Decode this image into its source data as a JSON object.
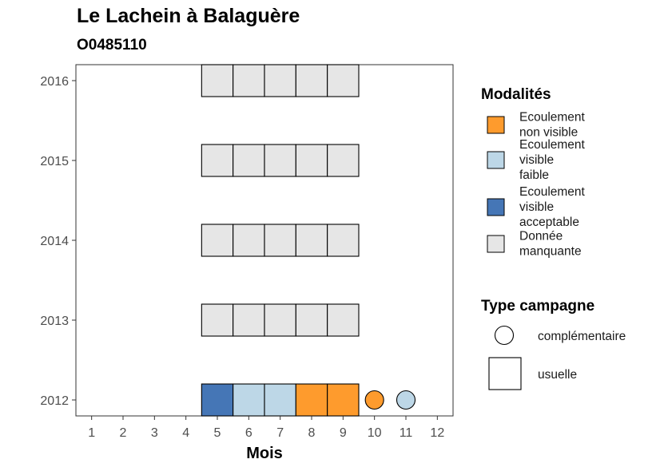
{
  "title": "Le Lachein à Balaguère",
  "subtitle": "O0485110",
  "chart_data": {
    "type": "heatmap",
    "xlabel": "Mois",
    "ylabel": "",
    "x_ticks": [
      1,
      2,
      3,
      4,
      5,
      6,
      7,
      8,
      9,
      10,
      11,
      12
    ],
    "y_ticks": [
      2012,
      2013,
      2014,
      2015,
      2016
    ],
    "xlim": [
      0.5,
      12.5
    ],
    "ylim": [
      2011.8,
      2016.2
    ],
    "grid": false,
    "legend_position": "right",
    "colors": {
      "Ecoulement non visible": "#FE9B2D",
      "Ecoulement visible faible": "#BDD7E7",
      "Ecoulement visible acceptable": "#4576B6",
      "Donnée manquante": "#E6E6E6"
    },
    "observations": [
      {
        "year": 2016,
        "month": 5,
        "modality": "Donnée manquante",
        "campaign": "usuelle"
      },
      {
        "year": 2016,
        "month": 6,
        "modality": "Donnée manquante",
        "campaign": "usuelle"
      },
      {
        "year": 2016,
        "month": 7,
        "modality": "Donnée manquante",
        "campaign": "usuelle"
      },
      {
        "year": 2016,
        "month": 8,
        "modality": "Donnée manquante",
        "campaign": "usuelle"
      },
      {
        "year": 2016,
        "month": 9,
        "modality": "Donnée manquante",
        "campaign": "usuelle"
      },
      {
        "year": 2015,
        "month": 5,
        "modality": "Donnée manquante",
        "campaign": "usuelle"
      },
      {
        "year": 2015,
        "month": 6,
        "modality": "Donnée manquante",
        "campaign": "usuelle"
      },
      {
        "year": 2015,
        "month": 7,
        "modality": "Donnée manquante",
        "campaign": "usuelle"
      },
      {
        "year": 2015,
        "month": 8,
        "modality": "Donnée manquante",
        "campaign": "usuelle"
      },
      {
        "year": 2015,
        "month": 9,
        "modality": "Donnée manquante",
        "campaign": "usuelle"
      },
      {
        "year": 2014,
        "month": 5,
        "modality": "Donnée manquante",
        "campaign": "usuelle"
      },
      {
        "year": 2014,
        "month": 6,
        "modality": "Donnée manquante",
        "campaign": "usuelle"
      },
      {
        "year": 2014,
        "month": 7,
        "modality": "Donnée manquante",
        "campaign": "usuelle"
      },
      {
        "year": 2014,
        "month": 8,
        "modality": "Donnée manquante",
        "campaign": "usuelle"
      },
      {
        "year": 2014,
        "month": 9,
        "modality": "Donnée manquante",
        "campaign": "usuelle"
      },
      {
        "year": 2013,
        "month": 5,
        "modality": "Donnée manquante",
        "campaign": "usuelle"
      },
      {
        "year": 2013,
        "month": 6,
        "modality": "Donnée manquante",
        "campaign": "usuelle"
      },
      {
        "year": 2013,
        "month": 7,
        "modality": "Donnée manquante",
        "campaign": "usuelle"
      },
      {
        "year": 2013,
        "month": 8,
        "modality": "Donnée manquante",
        "campaign": "usuelle"
      },
      {
        "year": 2013,
        "month": 9,
        "modality": "Donnée manquante",
        "campaign": "usuelle"
      },
      {
        "year": 2012,
        "month": 5,
        "modality": "Ecoulement visible acceptable",
        "campaign": "usuelle"
      },
      {
        "year": 2012,
        "month": 6,
        "modality": "Ecoulement visible faible",
        "campaign": "usuelle"
      },
      {
        "year": 2012,
        "month": 7,
        "modality": "Ecoulement visible faible",
        "campaign": "usuelle"
      },
      {
        "year": 2012,
        "month": 8,
        "modality": "Ecoulement non visible",
        "campaign": "usuelle"
      },
      {
        "year": 2012,
        "month": 9,
        "modality": "Ecoulement non visible",
        "campaign": "usuelle"
      },
      {
        "year": 2012,
        "month": 10,
        "modality": "Ecoulement non visible",
        "campaign": "complémentaire"
      },
      {
        "year": 2012,
        "month": 11,
        "modality": "Ecoulement visible faible",
        "campaign": "complémentaire"
      }
    ],
    "legends": {
      "modalites": {
        "title": "Modalités",
        "items": [
          {
            "label_lines": [
              "Ecoulement",
              "non visible"
            ],
            "color": "#FE9B2D"
          },
          {
            "label_lines": [
              "Ecoulement",
              "visible",
              "faible"
            ],
            "color": "#BDD7E7"
          },
          {
            "label_lines": [
              "Ecoulement",
              "visible",
              "acceptable"
            ],
            "color": "#4576B6"
          },
          {
            "label_lines": [
              "Donnée",
              "manquante"
            ],
            "color": "#E6E6E6"
          }
        ]
      },
      "campagne": {
        "title": "Type campagne",
        "items": [
          {
            "label": "complémentaire",
            "shape": "circle"
          },
          {
            "label": "usuelle",
            "shape": "square"
          }
        ]
      }
    }
  }
}
